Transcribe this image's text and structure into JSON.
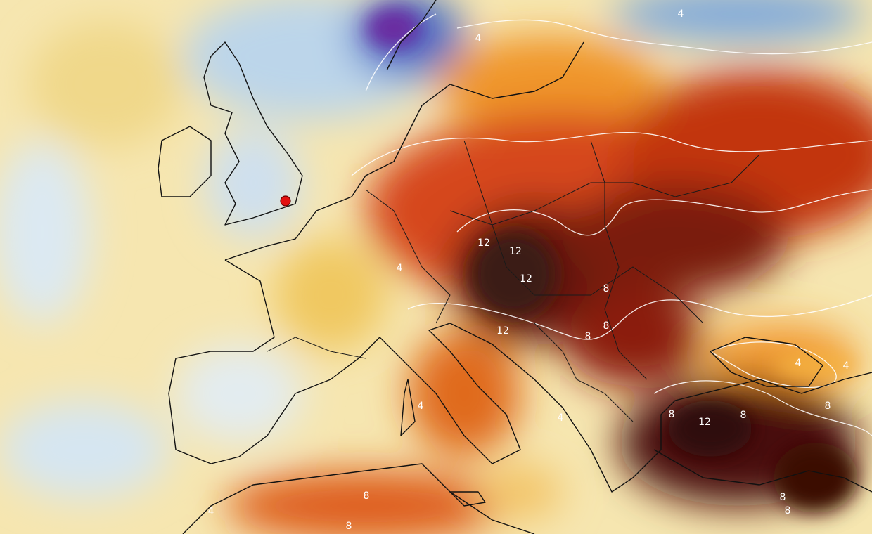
{
  "contour_labels": [
    12,
    12,
    12,
    12,
    12,
    8,
    8,
    8,
    8,
    8,
    8,
    8,
    8,
    8,
    8,
    4,
    4,
    4,
    4,
    4,
    4,
    4,
    4
  ]
}
